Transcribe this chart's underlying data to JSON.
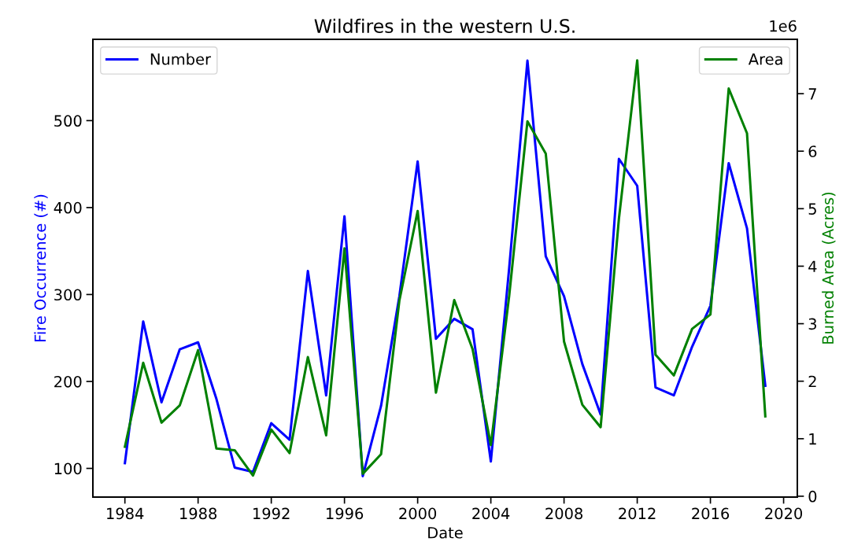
{
  "chart_data": {
    "type": "line",
    "title": "Wildfires in the western U.S.",
    "xlabel": "Date",
    "ylabel": "Fire Occurrence (#)",
    "y2label": "Burned Area (Acres)",
    "x": [
      1984,
      1985,
      1986,
      1987,
      1988,
      1989,
      1990,
      1991,
      1992,
      1993,
      1994,
      1995,
      1996,
      1997,
      1998,
      1999,
      2000,
      2001,
      2002,
      2003,
      2004,
      2005,
      2006,
      2007,
      2008,
      2009,
      2010,
      2011,
      2012,
      2013,
      2014,
      2015,
      2016,
      2017,
      2018,
      2019
    ],
    "series": [
      {
        "name": "Number",
        "color": "#0000ff",
        "values": [
          106,
          269,
          176,
          237,
          245,
          180,
          101,
          96,
          152,
          133,
          327,
          184,
          390,
          91,
          172,
          298,
          453,
          249,
          272,
          260,
          108,
          330,
          569,
          344,
          298,
          220,
          162,
          456,
          425,
          193,
          184,
          240,
          287,
          451,
          376,
          195
        ]
      },
      {
        "name": "Area",
        "color": "#008000",
        "axis": "y2",
        "values": [
          0.86,
          2.32,
          1.28,
          1.58,
          2.54,
          0.83,
          0.8,
          0.36,
          1.16,
          0.75,
          2.42,
          1.06,
          4.31,
          0.39,
          0.73,
          3.4,
          4.96,
          1.8,
          3.41,
          2.56,
          0.89,
          3.48,
          6.52,
          5.96,
          2.69,
          1.59,
          1.2,
          4.83,
          7.58,
          2.46,
          2.1,
          2.91,
          3.16,
          7.09,
          6.31,
          1.39
        ]
      }
    ],
    "xlim": [
      1982.25,
      2020.75
    ],
    "xticks": [
      1984,
      1988,
      1992,
      1996,
      2000,
      2004,
      2008,
      2012,
      2016,
      2020
    ],
    "ylim": [
      67,
      593.5
    ],
    "yticks": [
      100,
      200,
      300,
      400,
      500
    ],
    "y2lim": [
      -0.015,
      7.945
    ],
    "y2ticks": [
      0,
      1,
      2,
      3,
      4,
      5,
      6,
      7
    ],
    "annotations": [
      "1e6"
    ],
    "legend": "top",
    "grid": false,
    "line_style": "solid",
    "marker": "none"
  }
}
